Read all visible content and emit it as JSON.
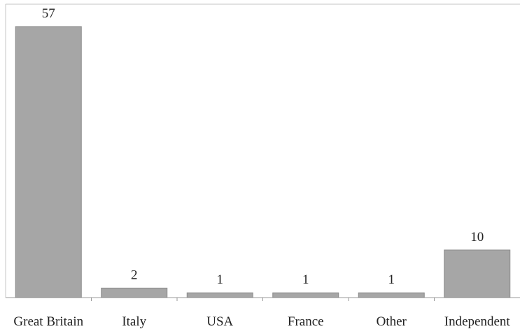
{
  "chart_data": {
    "type": "bar",
    "categories": [
      "Great Britain",
      "Italy",
      "USA",
      "France",
      "Other",
      "Independent"
    ],
    "values": [
      57,
      2,
      1,
      1,
      1,
      10
    ],
    "title": "",
    "xlabel": "",
    "ylabel": "",
    "ylim": [
      0,
      60
    ],
    "grid": false,
    "legend": "none",
    "bar_color": "#a6a6a6",
    "bar_outline": "#8a8a8a",
    "text_color": "#222222"
  }
}
